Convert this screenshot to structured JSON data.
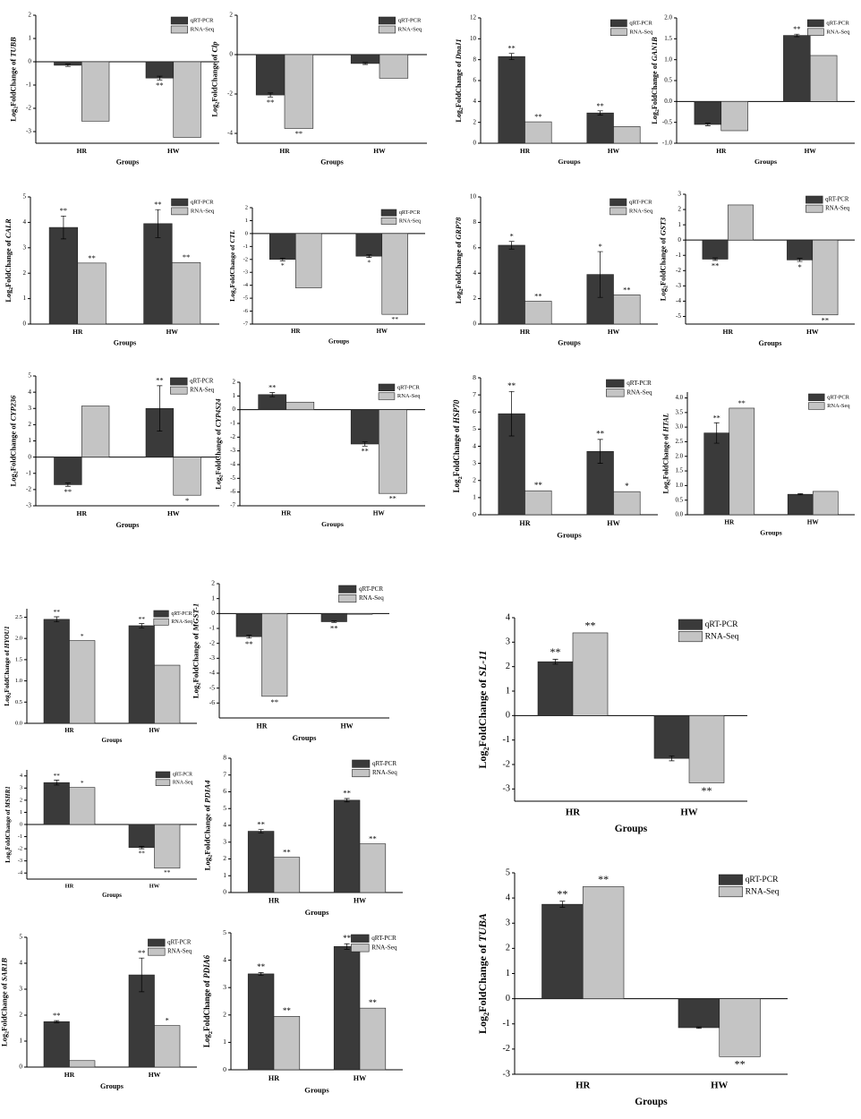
{
  "chart_data": [
    {
      "type": "bar",
      "ylabel": [
        "Log",
        "2",
        "FoldChange of ",
        "TUBB"
      ],
      "xlabel": "Groups",
      "categories": [
        "HR",
        "HW"
      ],
      "series": [
        {
          "name": "qRT-PCR",
          "color": "#3a3a3a",
          "values": [
            -0.15,
            -0.7
          ],
          "errors": [
            0.05,
            0.08
          ],
          "labels": [
            null,
            "**"
          ]
        },
        {
          "name": "RNA-Seq",
          "color": "#c4c4c4",
          "values": [
            -2.55,
            -3.25
          ],
          "labels": [
            null,
            null
          ]
        }
      ],
      "ylim": [
        -3.5,
        2
      ],
      "yticks": [
        -3,
        -2,
        -1,
        0,
        1,
        2
      ],
      "legend": "upper right"
    },
    {
      "type": "bar",
      "ylabel": [
        "Log",
        "2",
        "FoldChange of ",
        "Clp"
      ],
      "xlabel": "Groups",
      "categories": [
        "HR",
        "HW"
      ],
      "series": [
        {
          "name": "qRT-PCR",
          "color": "#3a3a3a",
          "values": [
            -2.05,
            -0.45
          ],
          "errors": [
            0.1,
            0.05
          ],
          "labels": [
            "**",
            null
          ]
        },
        {
          "name": "RNA-Seq",
          "color": "#c4c4c4",
          "values": [
            -3.75,
            -1.2
          ],
          "labels": [
            "**",
            null
          ]
        }
      ],
      "ylim": [
        -4.5,
        2
      ],
      "yticks": [
        -4,
        -2,
        0,
        2
      ],
      "legend": "upper right"
    },
    {
      "type": "bar",
      "ylabel": [
        "Log",
        "2",
        "FoldChange of ",
        "DnaJ1"
      ],
      "xlabel": "Groups",
      "categories": [
        "HR",
        "HW"
      ],
      "series": [
        {
          "name": "qRT-PCR",
          "color": "#3a3a3a",
          "values": [
            8.3,
            2.9
          ],
          "errors": [
            0.3,
            0.2
          ],
          "labels": [
            "**",
            "**"
          ]
        },
        {
          "name": "RNA-Seq",
          "color": "#c4c4c4",
          "values": [
            2.05,
            1.6
          ],
          "labels": [
            "**",
            null
          ]
        }
      ],
      "ylim": [
        0,
        12
      ],
      "yticks": [
        0,
        2,
        4,
        6,
        8,
        10,
        12
      ],
      "legend": "upper right"
    },
    {
      "type": "bar",
      "ylabel": [
        "Log",
        "2",
        "FoldChange of ",
        "GAN1B"
      ],
      "xlabel": "Groups",
      "categories": [
        "HR",
        "HW"
      ],
      "series": [
        {
          "name": "qRT-PCR",
          "color": "#3a3a3a",
          "values": [
            -0.55,
            1.58
          ],
          "errors": [
            0.03,
            0.03
          ],
          "labels": [
            null,
            "**"
          ]
        },
        {
          "name": "RNA-Seq",
          "color": "#c4c4c4",
          "values": [
            -0.7,
            1.1
          ],
          "labels": [
            null,
            null
          ]
        }
      ],
      "ylim": [
        -1,
        2
      ],
      "yticks": [
        {
          "value": -1,
          "label": "-1.0"
        },
        -0.5,
        {
          "value": 0,
          "label": "0.0"
        },
        0.5,
        {
          "value": 1,
          "label": "1.0"
        },
        1.5,
        {
          "value": 2,
          "label": "2.0"
        }
      ],
      "legend": "upper right"
    },
    {
      "type": "bar",
      "ylabel": [
        "Log",
        "2",
        "FoldChange of ",
        "CALR"
      ],
      "xlabel": "Groups",
      "categories": [
        "HR",
        "HW"
      ],
      "series": [
        {
          "name": "qRT-PCR",
          "color": "#3a3a3a",
          "values": [
            3.8,
            3.95
          ],
          "errors": [
            0.45,
            0.55
          ],
          "labels": [
            "**",
            "**"
          ]
        },
        {
          "name": "RNA-Seq",
          "color": "#c4c4c4",
          "values": [
            2.4,
            2.42
          ],
          "labels": [
            "**",
            "**"
          ]
        }
      ],
      "ylim": [
        0,
        5
      ],
      "yticks": [
        0,
        1,
        2,
        3,
        4,
        5
      ],
      "legend": "upper right"
    },
    {
      "type": "bar",
      "ylabel": [
        "Log",
        "2",
        "FoldChange of ",
        "CTL"
      ],
      "xlabel": "Groups",
      "categories": [
        "HR",
        "HW"
      ],
      "series": [
        {
          "name": "qRT-PCR",
          "color": "#3a3a3a",
          "values": [
            -2.0,
            -1.75
          ],
          "errors": [
            0.1,
            0.1
          ],
          "labels": [
            "*",
            "*"
          ]
        },
        {
          "name": "RNA-Seq",
          "color": "#c4c4c4",
          "values": [
            -4.2,
            -6.25
          ],
          "labels": [
            null,
            "**"
          ]
        }
      ],
      "ylim": [
        -7,
        2
      ],
      "yticks": [
        -7,
        -6,
        -5,
        -4,
        -3,
        -2,
        -1,
        0,
        1,
        2
      ],
      "legend": "upper right"
    },
    {
      "type": "bar",
      "ylabel": [
        "Log",
        "2",
        "FoldChange of ",
        "GRP78"
      ],
      "xlabel": "Groups",
      "categories": [
        "HR",
        "HW"
      ],
      "series": [
        {
          "name": "qRT-PCR",
          "color": "#3a3a3a",
          "values": [
            6.2,
            3.9
          ],
          "errors": [
            0.3,
            1.8
          ],
          "labels": [
            "*",
            "*"
          ]
        },
        {
          "name": "RNA-Seq",
          "color": "#c4c4c4",
          "values": [
            1.8,
            2.3
          ],
          "labels": [
            "**",
            "**"
          ]
        }
      ],
      "ylim": [
        0,
        10
      ],
      "yticks": [
        0,
        2,
        4,
        6,
        8,
        10
      ],
      "legend": "upper right"
    },
    {
      "type": "bar",
      "ylabel": [
        "Log",
        "2",
        "FoldChange of ",
        "GST3"
      ],
      "xlabel": "Groups",
      "categories": [
        "HR",
        "HW"
      ],
      "series": [
        {
          "name": "qRT-PCR",
          "color": "#3a3a3a",
          "values": [
            -1.25,
            -1.3
          ],
          "errors": [
            0.08,
            0.1
          ],
          "labels": [
            "**",
            "*"
          ]
        },
        {
          "name": "RNA-Seq",
          "color": "#c4c4c4",
          "values": [
            2.3,
            -4.9
          ],
          "labels": [
            null,
            "**"
          ]
        }
      ],
      "ylim": [
        -5.5,
        3
      ],
      "yticks": [
        -5,
        -4,
        -3,
        -2,
        -1,
        0,
        1,
        2,
        3
      ],
      "legend": "upper right"
    },
    {
      "type": "bar",
      "ylabel": [
        "Log",
        "2",
        "FoldChange of ",
        "CYP236"
      ],
      "xlabel": "Groups",
      "categories": [
        "HR",
        "HW"
      ],
      "series": [
        {
          "name": "qRT-PCR",
          "color": "#3a3a3a",
          "values": [
            -1.7,
            3.0
          ],
          "errors": [
            0.1,
            1.4
          ],
          "labels": [
            "**",
            "**"
          ]
        },
        {
          "name": "RNA-Seq",
          "color": "#c4c4c4",
          "values": [
            3.15,
            -2.35
          ],
          "labels": [
            null,
            "*"
          ]
        }
      ],
      "ylim": [
        -3,
        5
      ],
      "yticks": [
        -3,
        -2,
        -1,
        0,
        1,
        2,
        3,
        4,
        5
      ],
      "legend": "upper right"
    },
    {
      "type": "bar",
      "ylabel": [
        "Log",
        "2",
        "FoldChange of ",
        "CYP4S24"
      ],
      "xlabel": "Groups",
      "categories": [
        "HR",
        "HW"
      ],
      "series": [
        {
          "name": "qRT-PCR",
          "color": "#3a3a3a",
          "values": [
            1.1,
            -2.5
          ],
          "errors": [
            0.15,
            0.15
          ],
          "labels": [
            "**",
            "**"
          ]
        },
        {
          "name": "RNA-Seq",
          "color": "#c4c4c4",
          "values": [
            0.55,
            -6.1
          ],
          "labels": [
            null,
            "**"
          ]
        }
      ],
      "ylim": [
        -7,
        2
      ],
      "yticks": [
        -7,
        -6,
        -5,
        -4,
        -3,
        -2,
        -1,
        0,
        1,
        2
      ],
      "legend": "upper right"
    },
    {
      "type": "bar",
      "ylabel": [
        "Log",
        "2",
        "FoldChange of ",
        "HSP70"
      ],
      "xlabel": "Groups",
      "categories": [
        "HR",
        "HW"
      ],
      "series": [
        {
          "name": "qRT-PCR",
          "color": "#3a3a3a",
          "values": [
            5.9,
            3.7
          ],
          "errors": [
            1.3,
            0.7
          ],
          "labels": [
            "**",
            "**"
          ]
        },
        {
          "name": "RNA-Seq",
          "color": "#c4c4c4",
          "values": [
            1.4,
            1.35
          ],
          "labels": [
            "**",
            "*"
          ]
        }
      ],
      "ylim": [
        0,
        8
      ],
      "yticks": [
        0,
        1,
        2,
        3,
        4,
        5,
        6,
        7,
        8
      ],
      "legend": "upper right"
    },
    {
      "type": "bar",
      "ylabel": [
        "Log",
        "2",
        "FoldChange of ",
        "HTAL"
      ],
      "xlabel": "Groups",
      "categories": [
        "HR",
        "HW"
      ],
      "series": [
        {
          "name": "qRT-PCR",
          "color": "#3a3a3a",
          "values": [
            2.8,
            0.7
          ],
          "errors": [
            0.35,
            0.02
          ],
          "labels": [
            "**",
            null
          ]
        },
        {
          "name": "RNA-Seq",
          "color": "#c4c4c4",
          "values": [
            3.65,
            0.8
          ],
          "labels": [
            "**",
            null
          ]
        }
      ],
      "ylim": [
        0,
        4.2
      ],
      "yticks": [
        {
          "value": 0,
          "label": "0.0"
        },
        0.5,
        {
          "value": 1,
          "label": "1.0"
        },
        1.5,
        {
          "value": 2,
          "label": "2.0"
        },
        2.5,
        {
          "value": 3,
          "label": "3.0"
        },
        3.5,
        {
          "value": 4,
          "label": "4.0"
        }
      ],
      "legend": "upper right"
    },
    {
      "type": "bar",
      "ylabel": [
        "Log",
        "2",
        "FoldChange of ",
        "HYOU1"
      ],
      "xlabel": "Groups",
      "categories": [
        "HR",
        "HW"
      ],
      "series": [
        {
          "name": "qRT-PCR",
          "color": "#3a3a3a",
          "values": [
            2.45,
            2.3
          ],
          "errors": [
            0.06,
            0.05
          ],
          "labels": [
            "**",
            "**"
          ]
        },
        {
          "name": "RNA-Seq",
          "color": "#c4c4c4",
          "values": [
            1.95,
            1.37
          ],
          "labels": [
            "*",
            null
          ]
        }
      ],
      "ylim": [
        0,
        2.7
      ],
      "yticks": [
        {
          "value": 0,
          "label": "0.0"
        },
        0.5,
        {
          "value": 1,
          "label": "1.0"
        },
        1.5,
        {
          "value": 2,
          "label": "2.0"
        },
        2.5
      ],
      "legend": "upper right"
    },
    {
      "type": "bar",
      "ylabel": [
        "Log",
        "2",
        "FoldChange of ",
        "MGST-1"
      ],
      "xlabel": "Groups",
      "categories": [
        "HR",
        "HW"
      ],
      "series": [
        {
          "name": "qRT-PCR",
          "color": "#3a3a3a",
          "values": [
            -1.55,
            -0.55
          ],
          "errors": [
            0.1,
            0.05
          ],
          "labels": [
            "**",
            "**"
          ]
        },
        {
          "name": "RNA-Seq",
          "color": "#c4c4c4",
          "values": [
            -5.55,
            -0.05
          ],
          "labels": [
            "**",
            null
          ]
        }
      ],
      "ylim": [
        -7,
        2
      ],
      "yticks": [
        -6,
        -5,
        -4,
        -3,
        -2,
        -1,
        0,
        1,
        2
      ],
      "legend": "upper right"
    },
    {
      "type": "bar",
      "ylabel": [
        "Log",
        "2",
        "FoldChange of ",
        "SL-11"
      ],
      "xlabel": "Groups",
      "categories": [
        "HR",
        "HW"
      ],
      "series": [
        {
          "name": "qRT-PCR",
          "color": "#3a3a3a",
          "values": [
            2.2,
            -1.75
          ],
          "errors": [
            0.1,
            0.1
          ],
          "labels": [
            "**",
            null
          ]
        },
        {
          "name": "RNA-Seq",
          "color": "#c4c4c4",
          "values": [
            3.38,
            -2.75
          ],
          "labels": [
            "**",
            "**"
          ]
        }
      ],
      "ylim": [
        -3.5,
        4
      ],
      "yticks": [
        -3,
        -2,
        -1,
        0,
        1,
        2,
        3,
        4
      ],
      "legend": "upper right"
    },
    {
      "type": "bar",
      "ylabel": [
        "Log",
        "2",
        "FoldChange of ",
        "MSHR1"
      ],
      "xlabel": "Groups",
      "categories": [
        "HR",
        "HW"
      ],
      "series": [
        {
          "name": "qRT-PCR",
          "color": "#3a3a3a",
          "values": [
            3.45,
            -1.9
          ],
          "errors": [
            0.2,
            0.1
          ],
          "labels": [
            "**",
            "**"
          ]
        },
        {
          "name": "RNA-Seq",
          "color": "#c4c4c4",
          "values": [
            3.05,
            -3.6
          ],
          "labels": [
            "*",
            "**"
          ]
        }
      ],
      "ylim": [
        -4.5,
        4.5
      ],
      "yticks": [
        -4,
        -3,
        -2,
        -1,
        0,
        1,
        2,
        3,
        4
      ],
      "legend": "upper right"
    },
    {
      "type": "bar",
      "ylabel": [
        "Log",
        "2",
        "FoldChange of ",
        "PDIA4"
      ],
      "xlabel": "Groups",
      "categories": [
        "HR",
        "HW"
      ],
      "series": [
        {
          "name": "qRT-PCR",
          "color": "#3a3a3a",
          "values": [
            3.65,
            5.5
          ],
          "errors": [
            0.1,
            0.1
          ],
          "labels": [
            "**",
            "**"
          ]
        },
        {
          "name": "RNA-Seq",
          "color": "#c4c4c4",
          "values": [
            2.1,
            2.9
          ],
          "labels": [
            "**",
            "**"
          ]
        }
      ],
      "ylim": [
        0,
        8
      ],
      "yticks": [
        0,
        1,
        2,
        3,
        4,
        5,
        6,
        7,
        8
      ],
      "legend": "upper right"
    },
    {
      "type": "bar",
      "ylabel": [
        "Log",
        "2",
        "FoldChange of ",
        "TUBA"
      ],
      "xlabel": "Groups",
      "categories": [
        "HR",
        "HW"
      ],
      "series": [
        {
          "name": "qRT-PCR",
          "color": "#3a3a3a",
          "values": [
            3.75,
            -1.15
          ],
          "errors": [
            0.12,
            0.03
          ],
          "labels": [
            "**",
            null
          ]
        },
        {
          "name": "RNA-Seq",
          "color": "#c4c4c4",
          "values": [
            4.45,
            -2.3
          ],
          "labels": [
            "**",
            "**"
          ]
        }
      ],
      "ylim": [
        -3,
        5
      ],
      "yticks": [
        -3,
        -2,
        -1,
        0,
        1,
        2,
        3,
        4,
        5
      ],
      "legend": "upper right"
    },
    {
      "type": "bar",
      "ylabel": [
        "Log",
        "2",
        "FoldChange of ",
        "SAR1B"
      ],
      "xlabel": "Groups",
      "categories": [
        "HR",
        "HW"
      ],
      "series": [
        {
          "name": "qRT-PCR",
          "color": "#3a3a3a",
          "values": [
            1.75,
            3.55
          ],
          "errors": [
            0.04,
            0.65
          ],
          "labels": [
            "**",
            "**"
          ]
        },
        {
          "name": "RNA-Seq",
          "color": "#c4c4c4",
          "values": [
            0.25,
            1.6
          ],
          "labels": [
            null,
            "*"
          ]
        }
      ],
      "ylim": [
        0,
        5
      ],
      "yticks": [
        0,
        1,
        2,
        3,
        4,
        5
      ],
      "legend": "upper right"
    },
    {
      "type": "bar",
      "ylabel": [
        "Log",
        "2",
        "FoldChange of ",
        "PDIA6"
      ],
      "xlabel": "Groups",
      "categories": [
        "HR",
        "HW"
      ],
      "series": [
        {
          "name": "qRT-PCR",
          "color": "#3a3a3a",
          "values": [
            3.5,
            4.5
          ],
          "errors": [
            0.05,
            0.1
          ],
          "labels": [
            "**",
            "**"
          ]
        },
        {
          "name": "RNA-Seq",
          "color": "#c4c4c4",
          "values": [
            1.95,
            2.25
          ],
          "labels": [
            "**",
            "**"
          ]
        }
      ],
      "ylim": [
        0,
        5
      ],
      "yticks": [
        0,
        1,
        2,
        3,
        4,
        5
      ],
      "legend": "upper right"
    }
  ]
}
